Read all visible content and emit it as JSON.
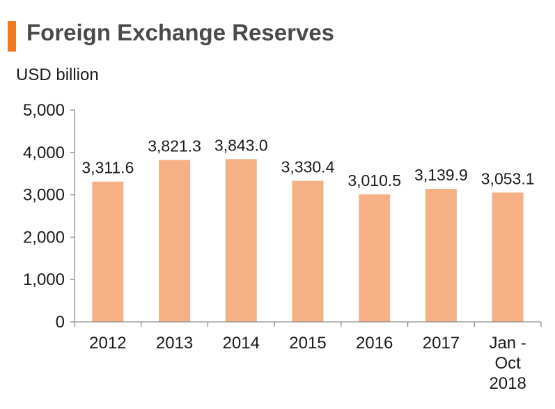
{
  "header": {
    "title": "Foreign Exchange Reserves",
    "unit": "USD billion",
    "accent_color": "#f47920"
  },
  "chart_data": {
    "type": "bar",
    "title": "Foreign Exchange Reserves",
    "ylabel": "USD billion",
    "xlabel": "",
    "categories": [
      "2012",
      "2013",
      "2014",
      "2015",
      "2016",
      "2017",
      "Jan - Oct 2018"
    ],
    "values": [
      3311.6,
      3821.3,
      3843.0,
      3330.4,
      3010.5,
      3139.9,
      3053.1
    ],
    "data_labels": [
      "3,311.6",
      "3,821.3",
      "3,843.0",
      "3,330.4",
      "3,010.5",
      "3,139.9",
      "3,053.1"
    ],
    "ylim": [
      0,
      5000
    ],
    "yticks": [
      0,
      1000,
      2000,
      3000,
      4000,
      5000
    ],
    "ytick_labels": [
      "0",
      "1,000",
      "2,000",
      "3,000",
      "4,000",
      "5,000"
    ],
    "bar_color": "#f5b085",
    "grid": false,
    "legend": "none"
  }
}
